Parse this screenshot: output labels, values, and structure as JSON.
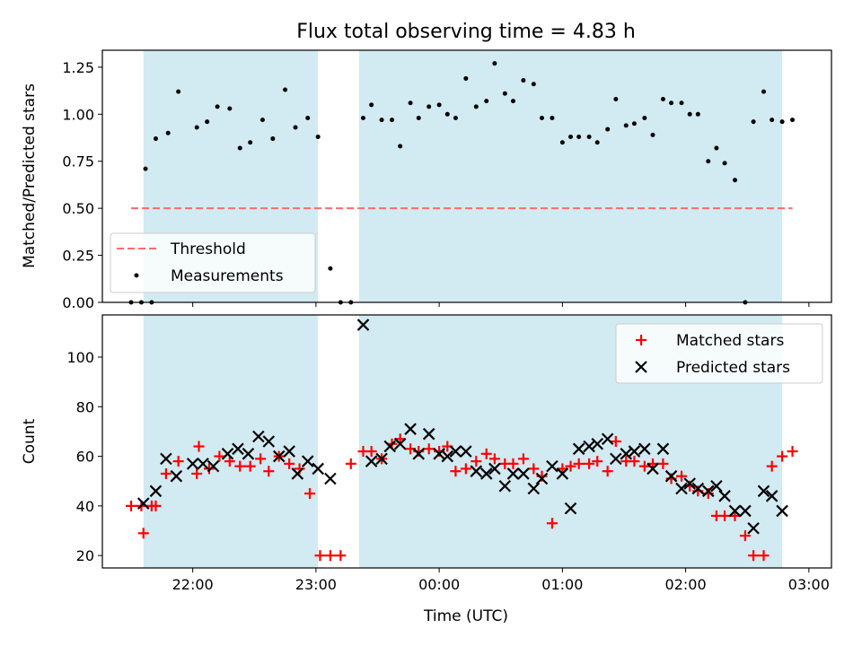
{
  "chart_data": [
    {
      "type": "scatter",
      "title": "Flux total observing time = 4.83 h",
      "ylabel": "Matched/Predicted stars",
      "xlabel": "",
      "x_unit": "UTC time",
      "ylim": [
        0,
        1.34
      ],
      "xlim": [
        "21:22",
        "23:04",
        "23:28",
        "03:11"
      ],
      "yticks": [
        "0.00",
        "0.25",
        "0.50",
        "0.75",
        "1.00",
        "1.25"
      ],
      "shaded_intervals": [
        [
          "21:36",
          "23:01"
        ],
        [
          "23:21",
          "02:47"
        ]
      ],
      "shade_color": "#add8e6",
      "threshold": {
        "name": "Threshold",
        "value": 0.5,
        "x_range": [
          "21:30",
          "02:52"
        ],
        "color": "#ff6b6b"
      },
      "legend_position": "lower-left",
      "legend": [
        "Threshold",
        "Measurements"
      ],
      "series": [
        {
          "name": "Measurements",
          "color": "#000000",
          "x": [
            "21:30",
            "21:35",
            "21:40",
            "21:37",
            "21:42",
            "21:48",
            "21:53",
            "22:02",
            "22:07",
            "22:12",
            "22:18",
            "22:23",
            "22:28",
            "22:34",
            "22:39",
            "22:45",
            "22:50",
            "22:56",
            "23:01",
            "23:07",
            "23:12",
            "23:17",
            "23:23",
            "23:27",
            "23:32",
            "23:37",
            "23:41",
            "23:46",
            "23:50",
            "23:55",
            "00:00",
            "00:04",
            "00:08",
            "00:13",
            "00:18",
            "00:23",
            "00:27",
            "00:32",
            "00:36",
            "00:41",
            "00:46",
            "00:50",
            "00:55",
            "01:00",
            "01:04",
            "01:08",
            "01:13",
            "01:17",
            "01:22",
            "01:26",
            "01:31",
            "01:35",
            "01:40",
            "01:44",
            "01:49",
            "01:53",
            "01:58",
            "02:02",
            "02:06",
            "02:11",
            "02:15",
            "02:19",
            "02:24",
            "02:29",
            "02:33",
            "02:38",
            "02:42",
            "02:47",
            "02:52"
          ],
          "y": [
            0.0,
            0.0,
            0.0,
            0.71,
            0.87,
            0.9,
            1.12,
            0.93,
            0.96,
            1.04,
            1.03,
            0.82,
            0.85,
            0.97,
            0.87,
            1.13,
            0.93,
            0.98,
            0.88,
            0.18,
            0.0,
            0.0,
            0.98,
            1.05,
            0.97,
            0.97,
            0.83,
            1.06,
            0.98,
            1.04,
            1.05,
            1.0,
            0.98,
            1.19,
            1.04,
            1.07,
            1.27,
            1.11,
            1.07,
            1.18,
            1.16,
            0.98,
            0.98,
            0.85,
            0.88,
            0.88,
            0.88,
            0.85,
            0.92,
            1.08,
            0.94,
            0.95,
            0.98,
            0.89,
            1.08,
            1.06,
            1.06,
            1.0,
            1.0,
            0.75,
            0.82,
            0.74,
            0.65,
            0.0,
            0.96,
            1.12,
            0.97,
            0.96,
            0.97
          ]
        }
      ]
    },
    {
      "type": "scatter",
      "title": "",
      "ylabel": "Count",
      "xlabel": "Time (UTC)",
      "ylim": [
        15,
        117
      ],
      "yticks": [
        "20",
        "40",
        "60",
        "80",
        "100"
      ],
      "xticks": [
        "22:00",
        "23:00",
        "00:00",
        "01:00",
        "02:00",
        "03:00"
      ],
      "legend_position": "upper-right",
      "legend": [
        "Matched stars",
        "Predicted stars"
      ],
      "series": [
        {
          "name": "Matched stars",
          "color": "#ff0000",
          "marker": "plus",
          "x": [
            "21:30",
            "21:35",
            "21:40",
            "21:36",
            "21:42",
            "21:47",
            "21:53",
            "22:02",
            "22:03",
            "22:08",
            "22:13",
            "22:18",
            "22:23",
            "22:28",
            "22:33",
            "22:37",
            "22:42",
            "22:47",
            "22:52",
            "22:57",
            "23:02",
            "23:07",
            "23:12",
            "23:17",
            "23:23",
            "23:27",
            "23:32",
            "23:37",
            "23:41",
            "23:46",
            "23:50",
            "23:55",
            "00:00",
            "00:04",
            "00:08",
            "00:13",
            "00:18",
            "00:23",
            "00:27",
            "00:32",
            "00:36",
            "00:41",
            "00:46",
            "00:50",
            "00:55",
            "01:00",
            "01:04",
            "01:08",
            "01:13",
            "01:17",
            "01:22",
            "01:26",
            "01:31",
            "01:35",
            "01:40",
            "01:44",
            "01:49",
            "01:53",
            "01:58",
            "02:02",
            "02:06",
            "02:11",
            "02:15",
            "02:19",
            "02:24",
            "02:29",
            "02:33",
            "02:38",
            "02:42",
            "02:47",
            "02:52"
          ],
          "y": [
            40,
            40,
            40,
            29,
            40,
            53,
            58,
            53,
            64,
            55,
            60,
            58,
            56,
            56,
            59,
            54,
            60,
            57,
            55,
            45,
            20,
            20,
            20,
            57,
            62,
            62,
            59,
            65,
            67,
            63,
            62,
            63,
            62,
            64,
            54,
            55,
            58,
            61,
            59,
            57,
            57,
            59,
            55,
            52,
            33,
            55,
            56,
            57,
            57,
            58,
            54,
            66,
            58,
            58,
            56,
            57,
            57,
            51,
            52,
            48,
            46,
            45,
            36,
            36,
            36,
            28,
            20,
            20,
            56,
            60,
            62
          ]
        },
        {
          "name": "Predicted stars",
          "color": "#000000",
          "marker": "x",
          "x": [
            "21:36",
            "21:42",
            "21:47",
            "21:52",
            "22:00",
            "22:05",
            "22:10",
            "22:17",
            "22:22",
            "22:27",
            "22:32",
            "22:37",
            "22:42",
            "22:47",
            "22:51",
            "22:56",
            "23:01",
            "23:07",
            "23:23",
            "23:27",
            "23:32",
            "23:36",
            "23:41",
            "23:46",
            "23:50",
            "23:55",
            "00:00",
            "00:04",
            "00:08",
            "00:13",
            "00:18",
            "00:23",
            "00:27",
            "00:32",
            "00:36",
            "00:41",
            "00:46",
            "00:50",
            "00:55",
            "01:00",
            "01:04",
            "01:08",
            "01:13",
            "01:17",
            "01:22",
            "01:26",
            "01:31",
            "01:35",
            "01:40",
            "01:44",
            "01:49",
            "01:53",
            "01:58",
            "02:02",
            "02:06",
            "02:11",
            "02:15",
            "02:19",
            "02:24",
            "02:29",
            "02:33",
            "02:38",
            "02:42",
            "02:47"
          ],
          "y": [
            41,
            46,
            59,
            52,
            57,
            57,
            56,
            61,
            63,
            61,
            68,
            66,
            60,
            62,
            53,
            58,
            55,
            51,
            113,
            58,
            59,
            64,
            65,
            71,
            61,
            69,
            61,
            60,
            62,
            62,
            54,
            53,
            55,
            48,
            53,
            53,
            47,
            51,
            56,
            53,
            39,
            63,
            64,
            65,
            67,
            59,
            61,
            62,
            63,
            55,
            63,
            52,
            47,
            49,
            47,
            46,
            48,
            44,
            38,
            38,
            31,
            46,
            44,
            38
          ]
        }
      ]
    }
  ]
}
